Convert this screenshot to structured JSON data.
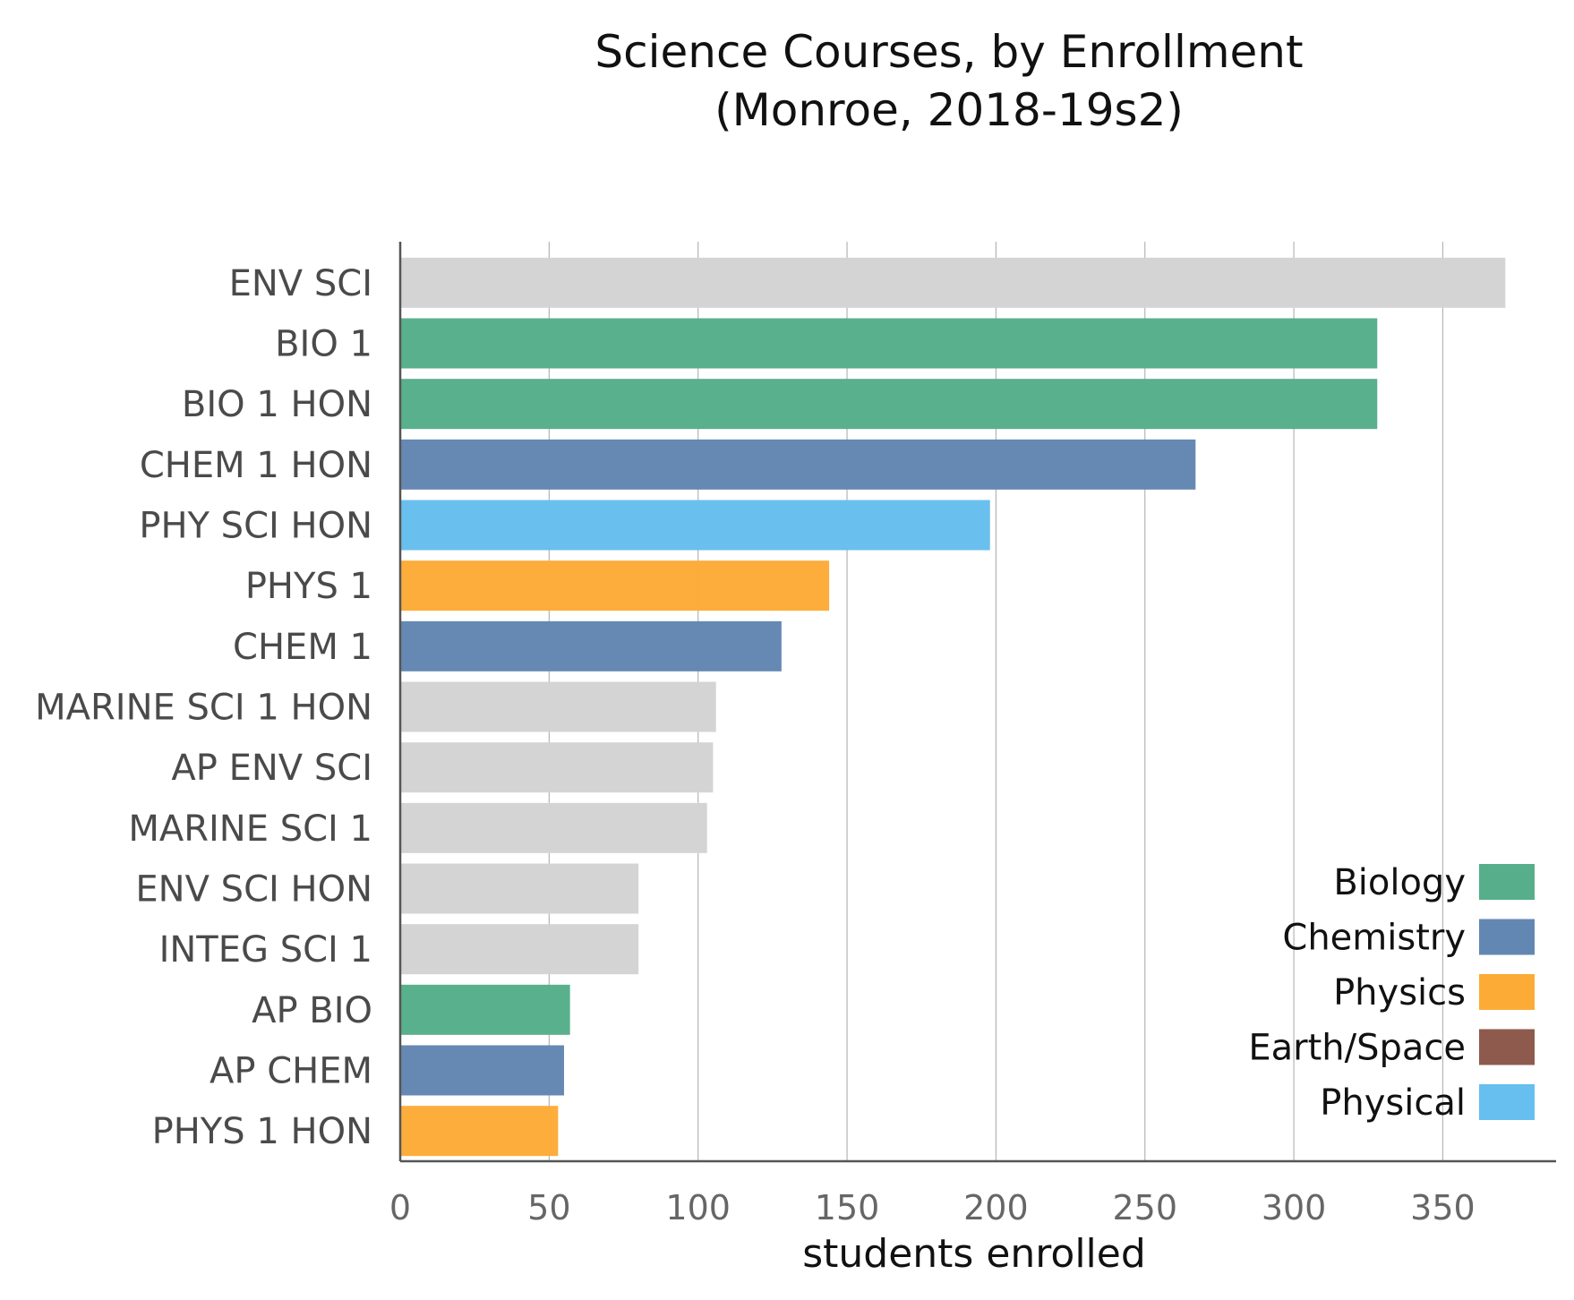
{
  "chart_data": {
    "type": "bar",
    "orientation": "horizontal",
    "title": [
      "Science Courses, by Enrollment",
      "(Monroe, 2018-19s2)"
    ],
    "xlabel": "students enrolled",
    "ylabel": "",
    "xlim": [
      0,
      390
    ],
    "xticks": [
      "0",
      "50",
      "100",
      "150",
      "200",
      "250",
      "300",
      "350"
    ],
    "grid": "vertical",
    "legend_position": "bottom-right",
    "legend": [
      {
        "label": "Biology",
        "color": "#56ae8a"
      },
      {
        "label": "Chemistry",
        "color": "#6387b3"
      },
      {
        "label": "Physics",
        "color": "#fdab37"
      },
      {
        "label": "Earth/Space",
        "color": "#8e5a4d"
      },
      {
        "label": "Physical",
        "color": "#66bfee"
      }
    ],
    "bars": [
      {
        "category": "ENV SCI",
        "value": 371,
        "color": "#d3d3d3"
      },
      {
        "category": "BIO 1",
        "value": 328,
        "color": "#56ae8a"
      },
      {
        "category": "BIO 1 HON",
        "value": 328,
        "color": "#56ae8a"
      },
      {
        "category": "CHEM 1 HON",
        "value": 267,
        "color": "#6387b3"
      },
      {
        "category": "PHY SCI HON",
        "value": 198,
        "color": "#66bfee"
      },
      {
        "category": "PHYS 1",
        "value": 144,
        "color": "#fdab37"
      },
      {
        "category": "CHEM 1",
        "value": 128,
        "color": "#6387b3"
      },
      {
        "category": "MARINE SCI 1 HON",
        "value": 106,
        "color": "#d3d3d3"
      },
      {
        "category": "AP ENV SCI",
        "value": 105,
        "color": "#d3d3d3"
      },
      {
        "category": "MARINE SCI 1",
        "value": 103,
        "color": "#d3d3d3"
      },
      {
        "category": "ENV SCI HON",
        "value": 80,
        "color": "#d3d3d3"
      },
      {
        "category": "INTEG SCI 1",
        "value": 80,
        "color": "#d3d3d3"
      },
      {
        "category": "AP BIO",
        "value": 57,
        "color": "#56ae8a"
      },
      {
        "category": "AP CHEM",
        "value": 55,
        "color": "#6387b3"
      },
      {
        "category": "PHYS 1 HON",
        "value": 53,
        "color": "#fdab37"
      }
    ]
  }
}
